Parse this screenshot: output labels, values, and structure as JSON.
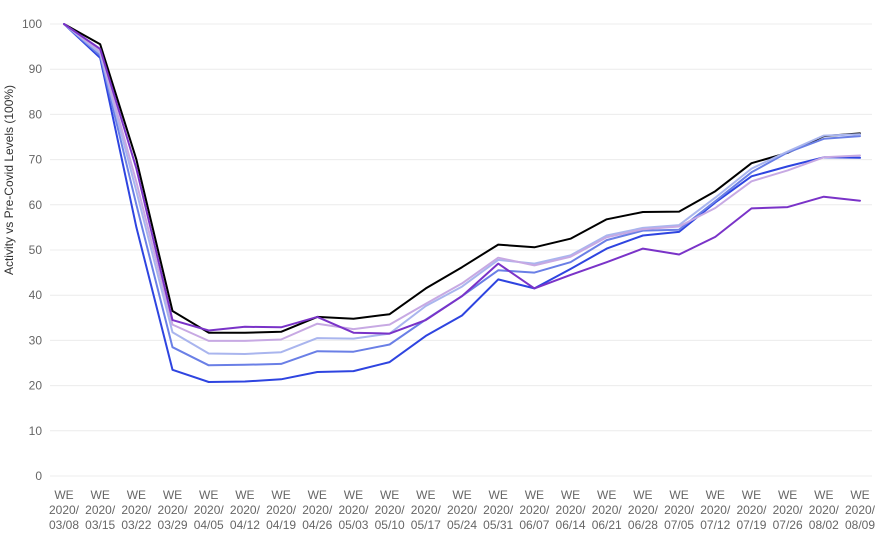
{
  "chart_data": {
    "type": "line",
    "title": "",
    "xlabel": "",
    "ylabel": "Activity vs Pre-Covid Levels (100%)",
    "ylim": [
      0,
      100
    ],
    "yticks": [
      0,
      10,
      20,
      30,
      40,
      50,
      60,
      70,
      80,
      90,
      100
    ],
    "grid": true,
    "legend": "none",
    "categories": [
      "WE 2020/ 03/08",
      "WE 2020/ 03/15",
      "WE 2020/ 03/22",
      "WE 2020/ 03/29",
      "WE 2020/ 04/05",
      "WE 2020/ 04/12",
      "WE 2020/ 04/19",
      "WE 2020/ 04/26",
      "WE 2020/ 05/03",
      "WE 2020/ 05/10",
      "WE 2020/ 05/17",
      "WE 2020/ 05/24",
      "WE 2020/ 05/31",
      "WE 2020/ 06/07",
      "WE 2020/ 06/14",
      "WE 2020/ 06/21",
      "WE 2020/ 06/28",
      "WE 2020/ 07/05",
      "WE 2020/ 07/12",
      "WE 2020/ 07/19",
      "WE 2020/ 07/26",
      "WE 2020/ 08/02",
      "WE 2020/ 08/09"
    ],
    "series": [
      {
        "color": "#000000",
        "values": [
          100,
          95.5,
          70,
          36.5,
          31.7,
          31.7,
          31.9,
          35.2,
          34.8,
          35.8,
          41.5,
          46.2,
          51.2,
          50.6,
          52.5,
          56.8,
          58.4,
          58.5,
          63.0,
          69.2,
          71.5,
          75.2,
          75.8
        ]
      },
      {
        "color": "#2e44e0",
        "values": [
          100,
          92.5,
          55,
          23.5,
          20.8,
          20.9,
          21.4,
          23.0,
          23.2,
          25.2,
          31.0,
          35.5,
          43.5,
          41.5,
          45.8,
          50.3,
          53.2,
          54.0,
          60.5,
          66.3,
          68.5,
          70.5,
          70.4
        ]
      },
      {
        "color": "#6a7fe6",
        "values": [
          100,
          93.0,
          60,
          28.5,
          24.5,
          24.6,
          24.8,
          27.6,
          27.5,
          29.1,
          34.6,
          39.8,
          45.5,
          45.0,
          47.3,
          52.2,
          54.3,
          54.5,
          60.8,
          67.2,
          71.6,
          74.6,
          75.2
        ]
      },
      {
        "color": "#a9b5ee",
        "values": [
          100,
          93.5,
          63,
          31.8,
          27.1,
          27.0,
          27.4,
          30.5,
          30.4,
          31.5,
          37.6,
          41.9,
          47.8,
          47.0,
          48.8,
          53.2,
          54.9,
          55.5,
          61.6,
          68.0,
          71.8,
          75.3,
          75.6
        ]
      },
      {
        "color": "#c7a9e3",
        "values": [
          100,
          94.0,
          65,
          33.5,
          29.9,
          29.9,
          30.2,
          33.7,
          32.5,
          33.5,
          38.1,
          42.6,
          48.3,
          46.6,
          48.5,
          52.8,
          54.6,
          55.2,
          59.3,
          65.2,
          67.6,
          70.5,
          70.9
        ]
      },
      {
        "color": "#7a33c8",
        "values": [
          100,
          94.5,
          68,
          34.5,
          32.2,
          33.0,
          32.9,
          35.2,
          31.7,
          31.5,
          34.5,
          39.8,
          47.0,
          41.5,
          44.5,
          47.3,
          50.3,
          49.0,
          52.9,
          59.2,
          59.5,
          61.8,
          60.9
        ]
      }
    ]
  }
}
